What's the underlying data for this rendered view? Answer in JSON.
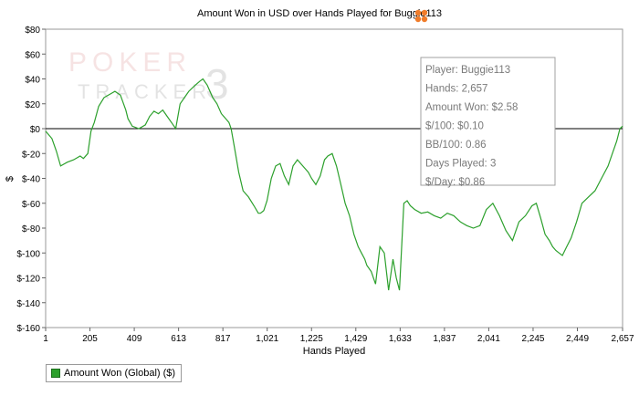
{
  "title": "Amount Won in USD over Hands Played for Buggie113",
  "watermark": {
    "line1": "POKER",
    "line2": "TRACKER",
    "num": "3"
  },
  "colors": {
    "series": "#2ca02c",
    "zero_line": "#000000",
    "grid": "#dddddd",
    "info_border": "#a0a0a0",
    "info_text": "#7a7a7a",
    "logo_accent": "#f07c2a"
  },
  "info_box": [
    "Player: Buggie113",
    "Hands: 2,657",
    "Amount Won: $2.58",
    "$/100: $0.10",
    "BB/100: 0.86",
    "Days Played: 3",
    "$/Day: $0.86"
  ],
  "legend": {
    "label": "Amount Won (Global) ($)"
  },
  "chart_data": {
    "type": "line",
    "title": "Amount Won in USD over Hands Played for Buggie113",
    "xlabel": "Hands Played",
    "ylabel": "$",
    "xlim": [
      1,
      2657
    ],
    "ylim": [
      -160,
      80
    ],
    "x_ticks": [
      1,
      205,
      409,
      613,
      817,
      1021,
      1225,
      1429,
      1633,
      1837,
      2041,
      2245,
      2449,
      2657
    ],
    "x_tick_labels": [
      "1",
      "205",
      "409",
      "613",
      "817",
      "1,021",
      "1,225",
      "1,429",
      "1,633",
      "1,837",
      "2,041",
      "2,245",
      "2,449",
      "2,657"
    ],
    "y_ticks": [
      80,
      60,
      40,
      20,
      0,
      -20,
      -40,
      -60,
      -80,
      -100,
      -120,
      -140,
      -160
    ],
    "y_tick_labels": [
      "$80",
      "$60",
      "$40",
      "$20",
      "$0",
      "$-20",
      "$-40",
      "$-60",
      "$-80",
      "$-100",
      "$-120",
      "$-140",
      "$-160"
    ],
    "grid": false,
    "legend_position": "bottom-left",
    "series": [
      {
        "name": "Amount Won (Global) ($)",
        "x": [
          1,
          30,
          50,
          70,
          100,
          130,
          160,
          175,
          195,
          210,
          225,
          245,
          270,
          300,
          320,
          345,
          370,
          380,
          400,
          430,
          460,
          480,
          500,
          520,
          540,
          560,
          580,
          600,
          620,
          640,
          660,
          690,
          710,
          725,
          745,
          770,
          790,
          810,
          830,
          845,
          855,
          870,
          890,
          910,
          935,
          960,
          980,
          990,
          1005,
          1020,
          1040,
          1060,
          1080,
          1100,
          1120,
          1140,
          1160,
          1185,
          1210,
          1225,
          1245,
          1265,
          1285,
          1300,
          1320,
          1340,
          1360,
          1380,
          1400,
          1420,
          1440,
          1455,
          1470,
          1480,
          1500,
          1520,
          1540,
          1560,
          1580,
          1600,
          1615,
          1630,
          1650,
          1665,
          1680,
          1700,
          1730,
          1760,
          1790,
          1820,
          1850,
          1880,
          1910,
          1940,
          1970,
          2000,
          2030,
          2060,
          2090,
          2120,
          2150,
          2180,
          2210,
          2240,
          2260,
          2280,
          2300,
          2320,
          2335,
          2350,
          2365,
          2380,
          2400,
          2420,
          2445,
          2470,
          2500,
          2530,
          2560,
          2590,
          2610,
          2630,
          2645,
          2657
        ],
        "y": [
          -2,
          -8,
          -18,
          -30,
          -27,
          -25,
          -22,
          -24,
          -20,
          -2,
          5,
          18,
          25,
          28,
          30,
          27,
          15,
          8,
          2,
          0,
          3,
          10,
          14,
          12,
          15,
          10,
          5,
          0,
          20,
          25,
          30,
          35,
          38,
          40,
          35,
          25,
          20,
          12,
          8,
          5,
          0,
          -15,
          -35,
          -50,
          -55,
          -62,
          -68,
          -68,
          -66,
          -58,
          -40,
          -30,
          -28,
          -38,
          -45,
          -30,
          -25,
          -30,
          -35,
          -40,
          -45,
          -38,
          -25,
          -22,
          -20,
          -30,
          -45,
          -60,
          -70,
          -85,
          -95,
          -100,
          -105,
          -110,
          -115,
          -125,
          -95,
          -100,
          -130,
          -105,
          -120,
          -130,
          -60,
          -58,
          -62,
          -65,
          -68,
          -67,
          -70,
          -72,
          -68,
          -70,
          -75,
          -78,
          -80,
          -78,
          -65,
          -60,
          -70,
          -82,
          -90,
          -75,
          -70,
          -62,
          -60,
          -72,
          -85,
          -90,
          -95,
          -98,
          -100,
          -102,
          -95,
          -88,
          -75,
          -60,
          -55,
          -50,
          -40,
          -30,
          -20,
          -10,
          0,
          2
        ]
      }
    ]
  }
}
